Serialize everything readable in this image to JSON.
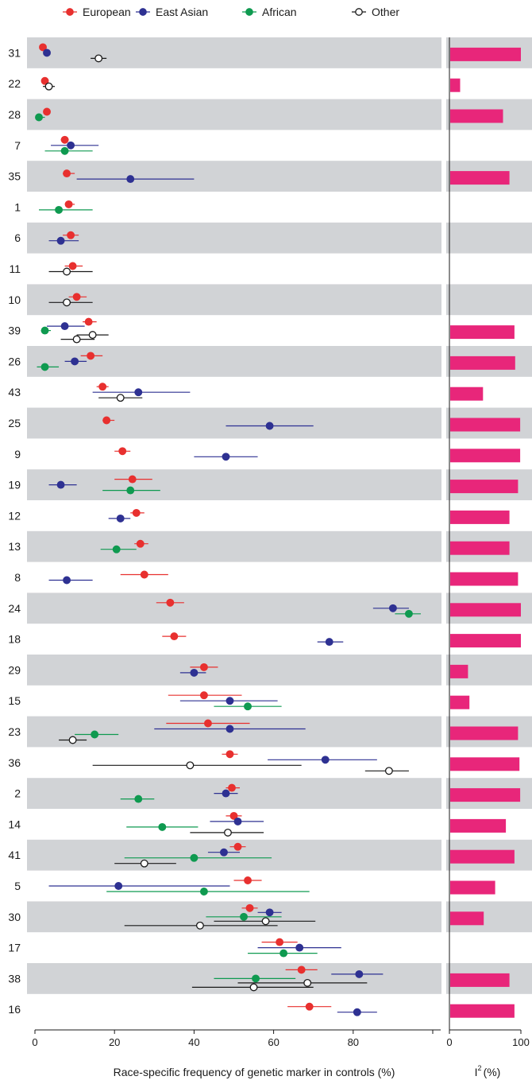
{
  "chart_data": {
    "type": "scatter",
    "subtype": "forest-plot-with-heterogeneity-bars",
    "xlabel": "Race-specific frequency of genetic marker in controls (%)",
    "xlim": [
      0,
      100
    ],
    "xticks": [
      "0",
      "20",
      "40",
      "60",
      "80"
    ],
    "i2_label": "I",
    "i2_sup": "2",
    "i2_unit": "(%)",
    "i2_ticks": [
      "0",
      "100"
    ],
    "i2_xlim": [
      0,
      100
    ],
    "legend": [
      {
        "key": "european",
        "name": "European",
        "color": "#e8302f",
        "marker": "filled"
      },
      {
        "key": "east_asian",
        "name": "East Asian",
        "color": "#2e3192",
        "marker": "filled"
      },
      {
        "key": "african",
        "name": "African",
        "color": "#0f9a50",
        "marker": "filled"
      },
      {
        "key": "other",
        "name": "Other",
        "color": "#1a1a1a",
        "marker": "open"
      }
    ],
    "bar_color": "#e8267a",
    "band_color": "#d1d3d6",
    "rows": [
      {
        "label": "31",
        "i2": 100,
        "points": [
          {
            "s": "european",
            "v": 2,
            "lo": null,
            "hi": null
          },
          {
            "s": "east_asian",
            "v": 3,
            "lo": null,
            "hi": null
          },
          {
            "s": "other",
            "v": 16,
            "lo": 14,
            "hi": 18
          }
        ]
      },
      {
        "label": "22",
        "i2": 15,
        "points": [
          {
            "s": "european",
            "v": 2.5,
            "lo": null,
            "hi": null
          },
          {
            "s": "other",
            "v": 3.5,
            "lo": 2,
            "hi": 5
          }
        ]
      },
      {
        "label": "28",
        "i2": 75,
        "points": [
          {
            "s": "european",
            "v": 3,
            "lo": null,
            "hi": null
          },
          {
            "s": "african",
            "v": 1,
            "lo": 0.3,
            "hi": 2.5
          }
        ]
      },
      {
        "label": "7",
        "i2": null,
        "points": [
          {
            "s": "european",
            "v": 7.5,
            "lo": 6.5,
            "hi": 8.5
          },
          {
            "s": "east_asian",
            "v": 9,
            "lo": 4,
            "hi": 16
          },
          {
            "s": "african",
            "v": 7.5,
            "lo": 2.5,
            "hi": 14.5
          }
        ]
      },
      {
        "label": "35",
        "i2": 84,
        "points": [
          {
            "s": "european",
            "v": 8,
            "lo": 7,
            "hi": 10
          },
          {
            "s": "east_asian",
            "v": 24,
            "lo": 10.5,
            "hi": 40
          }
        ]
      },
      {
        "label": "1",
        "i2": null,
        "points": [
          {
            "s": "european",
            "v": 8.5,
            "lo": 7.5,
            "hi": 10
          },
          {
            "s": "african",
            "v": 6,
            "lo": 1,
            "hi": 14.5
          }
        ]
      },
      {
        "label": "6",
        "i2": null,
        "points": [
          {
            "s": "european",
            "v": 9,
            "lo": 7,
            "hi": 11
          },
          {
            "s": "east_asian",
            "v": 6.5,
            "lo": 3.5,
            "hi": 11
          }
        ]
      },
      {
        "label": "11",
        "i2": null,
        "points": [
          {
            "s": "european",
            "v": 9.5,
            "lo": 7.5,
            "hi": 12
          },
          {
            "s": "other",
            "v": 8,
            "lo": 3.5,
            "hi": 14.5
          }
        ]
      },
      {
        "label": "10",
        "i2": null,
        "points": [
          {
            "s": "european",
            "v": 10.5,
            "lo": 8.5,
            "hi": 13
          },
          {
            "s": "other",
            "v": 8,
            "lo": 3.5,
            "hi": 14.5
          }
        ]
      },
      {
        "label": "39",
        "i2": 91,
        "points": [
          {
            "s": "european",
            "v": 13.5,
            "lo": 12,
            "hi": 15.5
          },
          {
            "s": "east_asian",
            "v": 7.5,
            "lo": 3,
            "hi": 12.5
          },
          {
            "s": "african",
            "v": 2.5,
            "lo": 1.5,
            "hi": 4
          },
          {
            "s": "other",
            "v": 14.5,
            "lo": 10.5,
            "hi": 18.5
          },
          {
            "s": "other",
            "v": 10.5,
            "lo": 6.5,
            "hi": 15
          }
        ]
      },
      {
        "label": "26",
        "i2": 92,
        "points": [
          {
            "s": "european",
            "v": 14,
            "lo": 11.5,
            "hi": 17
          },
          {
            "s": "east_asian",
            "v": 10,
            "lo": 7.5,
            "hi": 13
          },
          {
            "s": "african",
            "v": 2.5,
            "lo": 0.5,
            "hi": 6
          }
        ]
      },
      {
        "label": "43",
        "i2": 47,
        "points": [
          {
            "s": "european",
            "v": 17,
            "lo": 15.5,
            "hi": 18.5
          },
          {
            "s": "east_asian",
            "v": 26,
            "lo": 14.5,
            "hi": 39
          },
          {
            "s": "other",
            "v": 21.5,
            "lo": 16,
            "hi": 27
          }
        ]
      },
      {
        "label": "25",
        "i2": 99,
        "points": [
          {
            "s": "european",
            "v": 18,
            "lo": 17,
            "hi": 20
          },
          {
            "s": "east_asian",
            "v": 59,
            "lo": 48,
            "hi": 70
          }
        ]
      },
      {
        "label": "9",
        "i2": 99,
        "points": [
          {
            "s": "european",
            "v": 22,
            "lo": 20,
            "hi": 24
          },
          {
            "s": "east_asian",
            "v": 48,
            "lo": 40,
            "hi": 56
          }
        ]
      },
      {
        "label": "19",
        "i2": 96,
        "points": [
          {
            "s": "european",
            "v": 24.5,
            "lo": 20,
            "hi": 29.5
          },
          {
            "s": "east_asian",
            "v": 6.5,
            "lo": 3.5,
            "hi": 10.5
          },
          {
            "s": "african",
            "v": 24,
            "lo": 17,
            "hi": 31.5
          }
        ]
      },
      {
        "label": "12",
        "i2": 84,
        "points": [
          {
            "s": "european",
            "v": 25.5,
            "lo": 24,
            "hi": 27.5
          },
          {
            "s": "east_asian",
            "v": 21.5,
            "lo": 18.5,
            "hi": 24
          }
        ]
      },
      {
        "label": "13",
        "i2": 84,
        "points": [
          {
            "s": "european",
            "v": 26.5,
            "lo": 25,
            "hi": 28.5
          },
          {
            "s": "african",
            "v": 20.5,
            "lo": 16.5,
            "hi": 25.5
          }
        ]
      },
      {
        "label": "8",
        "i2": 96,
        "points": [
          {
            "s": "european",
            "v": 27.5,
            "lo": 21.5,
            "hi": 33.5
          },
          {
            "s": "east_asian",
            "v": 8,
            "lo": 3.5,
            "hi": 14.5
          }
        ]
      },
      {
        "label": "24",
        "i2": 100,
        "points": [
          {
            "s": "european",
            "v": 34,
            "lo": 30.5,
            "hi": 37.5
          },
          {
            "s": "east_asian",
            "v": 90,
            "lo": 85,
            "hi": 94
          },
          {
            "s": "african",
            "v": 94,
            "lo": 90.5,
            "hi": 97
          }
        ]
      },
      {
        "label": "18",
        "i2": 100,
        "points": [
          {
            "s": "european",
            "v": 35,
            "lo": 32,
            "hi": 38
          },
          {
            "s": "east_asian",
            "v": 74,
            "lo": 71,
            "hi": 77.5
          }
        ]
      },
      {
        "label": "29",
        "i2": 26,
        "points": [
          {
            "s": "european",
            "v": 42.5,
            "lo": 39,
            "hi": 46
          },
          {
            "s": "east_asian",
            "v": 40,
            "lo": 36.5,
            "hi": 43
          }
        ]
      },
      {
        "label": "15",
        "i2": 28,
        "points": [
          {
            "s": "european",
            "v": 42.5,
            "lo": 33.5,
            "hi": 52
          },
          {
            "s": "east_asian",
            "v": 49,
            "lo": 36.5,
            "hi": 61
          },
          {
            "s": "african",
            "v": 53.5,
            "lo": 45,
            "hi": 62
          }
        ]
      },
      {
        "label": "23",
        "i2": 96,
        "points": [
          {
            "s": "european",
            "v": 43.5,
            "lo": 33,
            "hi": 54
          },
          {
            "s": "east_asian",
            "v": 49,
            "lo": 30,
            "hi": 68
          },
          {
            "s": "african",
            "v": 15,
            "lo": 10,
            "hi": 21
          },
          {
            "s": "other",
            "v": 9.5,
            "lo": 6,
            "hi": 13
          }
        ]
      },
      {
        "label": "36",
        "i2": 98,
        "points": [
          {
            "s": "european",
            "v": 49,
            "lo": 47,
            "hi": 51
          },
          {
            "s": "east_asian",
            "v": 73,
            "lo": 58.5,
            "hi": 86
          },
          {
            "s": "other",
            "v": 39,
            "lo": 14.5,
            "hi": 67
          },
          {
            "s": "other",
            "v": 89,
            "lo": 83,
            "hi": 94
          }
        ]
      },
      {
        "label": "2",
        "i2": 99,
        "points": [
          {
            "s": "european",
            "v": 49.5,
            "lo": 48,
            "hi": 51.5
          },
          {
            "s": "east_asian",
            "v": 48,
            "lo": 45,
            "hi": 51
          },
          {
            "s": "african",
            "v": 26,
            "lo": 21.5,
            "hi": 30
          }
        ]
      },
      {
        "label": "14",
        "i2": 79,
        "points": [
          {
            "s": "european",
            "v": 50,
            "lo": 48,
            "hi": 52
          },
          {
            "s": "east_asian",
            "v": 51,
            "lo": 44,
            "hi": 57.5
          },
          {
            "s": "african",
            "v": 32,
            "lo": 23,
            "hi": 41
          },
          {
            "s": "other",
            "v": 48.5,
            "lo": 39,
            "hi": 57.5
          }
        ]
      },
      {
        "label": "41",
        "i2": 91,
        "points": [
          {
            "s": "european",
            "v": 51,
            "lo": 49,
            "hi": 53
          },
          {
            "s": "east_asian",
            "v": 47.5,
            "lo": 43.5,
            "hi": 51.5
          },
          {
            "s": "african",
            "v": 40,
            "lo": 22.5,
            "hi": 59.5
          },
          {
            "s": "other",
            "v": 27.5,
            "lo": 20,
            "hi": 35.5
          }
        ]
      },
      {
        "label": "5",
        "i2": 64,
        "points": [
          {
            "s": "european",
            "v": 53.5,
            "lo": 50,
            "hi": 57
          },
          {
            "s": "east_asian",
            "v": 21,
            "lo": 3.5,
            "hi": 49
          },
          {
            "s": "african",
            "v": 42.5,
            "lo": 18,
            "hi": 69
          }
        ]
      },
      {
        "label": "30",
        "i2": 48,
        "points": [
          {
            "s": "european",
            "v": 54,
            "lo": 52,
            "hi": 56
          },
          {
            "s": "east_asian",
            "v": 59,
            "lo": 56,
            "hi": 62
          },
          {
            "s": "african",
            "v": 52.5,
            "lo": 43,
            "hi": 62
          },
          {
            "s": "other",
            "v": 58,
            "lo": 45,
            "hi": 70.5
          },
          {
            "s": "other",
            "v": 41.5,
            "lo": 22.5,
            "hi": 61
          }
        ]
      },
      {
        "label": "17",
        "i2": null,
        "points": [
          {
            "s": "european",
            "v": 61.5,
            "lo": 57,
            "hi": 66
          },
          {
            "s": "east_asian",
            "v": 66.5,
            "lo": 56,
            "hi": 77
          },
          {
            "s": "african",
            "v": 62.5,
            "lo": 53.5,
            "hi": 71
          }
        ]
      },
      {
        "label": "38",
        "i2": 84,
        "points": [
          {
            "s": "european",
            "v": 67,
            "lo": 63,
            "hi": 71
          },
          {
            "s": "east_asian",
            "v": 81.5,
            "lo": 74.5,
            "hi": 87.5
          },
          {
            "s": "african",
            "v": 55.5,
            "lo": 45,
            "hi": 65.5
          },
          {
            "s": "other",
            "v": 68.5,
            "lo": 51,
            "hi": 83.5
          },
          {
            "s": "other",
            "v": 55,
            "lo": 39.5,
            "hi": 70
          }
        ]
      },
      {
        "label": "16",
        "i2": 91,
        "points": [
          {
            "s": "european",
            "v": 69,
            "lo": 63.5,
            "hi": 74.5
          },
          {
            "s": "east_asian",
            "v": 81,
            "lo": 76,
            "hi": 86
          }
        ]
      }
    ]
  }
}
